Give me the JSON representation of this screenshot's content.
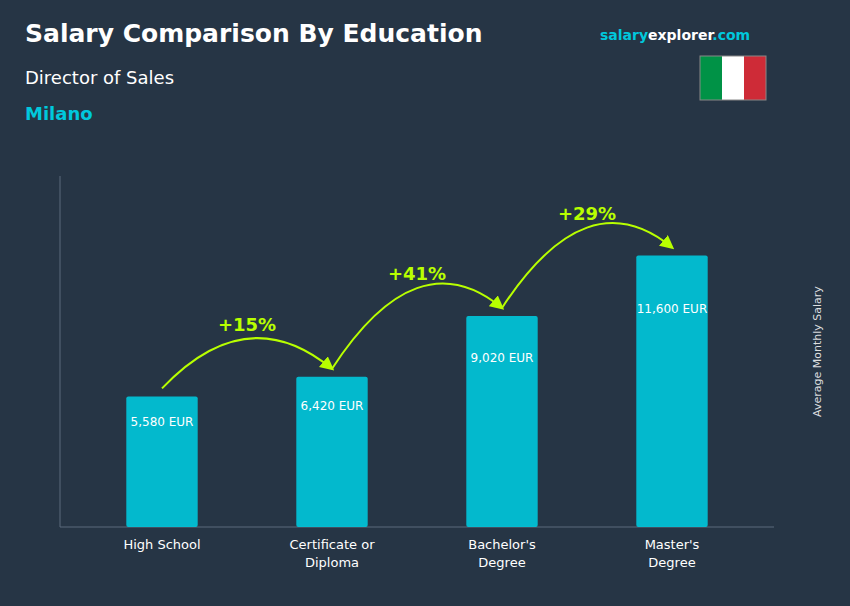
{
  "chart_data": {
    "type": "bar",
    "title": "Salary Comparison By Education",
    "subtitle": "Director of Sales",
    "ylabel": "Average Monthly Salary",
    "annotations": [
      "Milano",
      "salary",
      "explorer",
      ".com"
    ],
    "categories": [
      "High School",
      "Certificate or\nDiploma",
      "Bachelor's\nDegree",
      "Master's\nDegree"
    ],
    "values": [
      5580,
      6420,
      9020,
      11600
    ],
    "value_labels": [
      "5,580 EUR",
      "6,420 EUR",
      "9,020 EUR",
      "11,600 EUR"
    ],
    "data_labels": true,
    "color": "#00c8dc",
    "changes": {
      "values": [
        15,
        41,
        29
      ],
      "value_labels": [
        "+15%",
        "+41%",
        "+29%"
      ],
      "color": "#b8ff00"
    },
    "ylim": [
      0,
      15000
    ],
    "tick_labels": "x",
    "grid": false
  }
}
